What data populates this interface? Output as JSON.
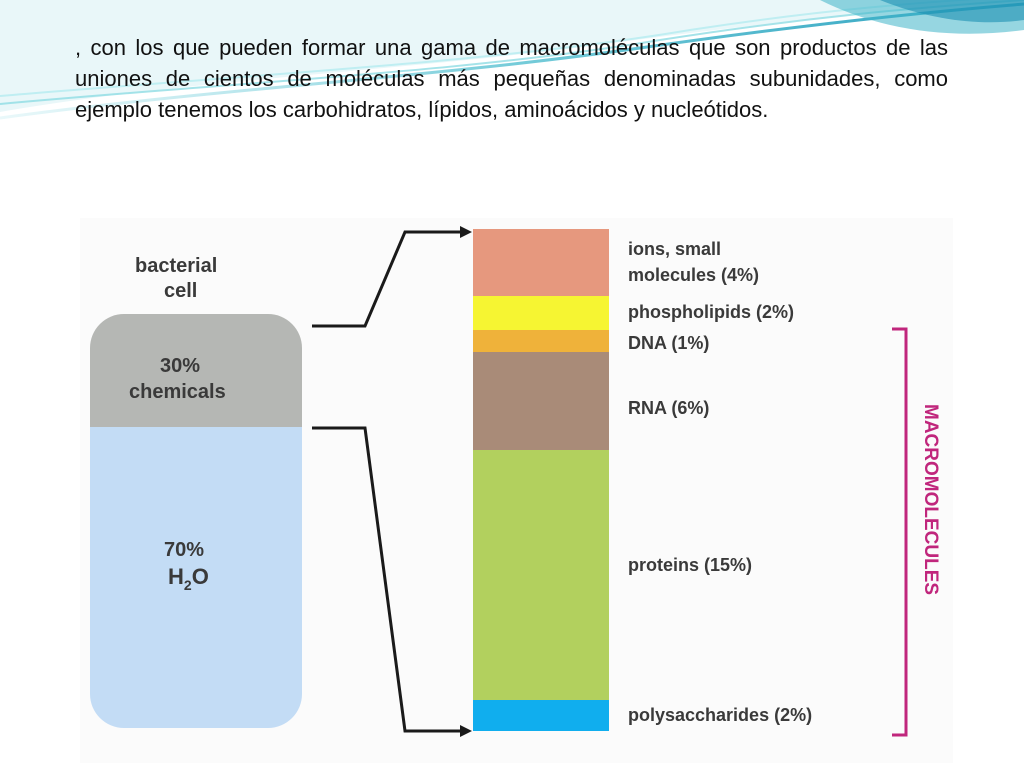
{
  "slide": {
    "text": ", con los que pueden formar una gama de macromoléculas que son productos de las uniones de cientos de moléculas más pequeñas denominadas subunidades, como ejemplo tenemos los carbohidratos, lípidos, aminoácidos y nucleótidos."
  },
  "figure": {
    "cell_label_line1": "bacterial",
    "cell_label_line2": "cell",
    "chemicals_pct": "30%",
    "chemicals_label": "chemicals",
    "water_pct": "70%",
    "water_label_h": "H",
    "water_label_sub": "2",
    "water_label_o": "O",
    "bracket_label": "MACROMOLECULES",
    "colors": {
      "chemicals_fill": "#b5b7b4",
      "water_fill": "#c3dcf5",
      "bracket": "#c0267c"
    },
    "components": [
      {
        "label_line1": "ions, small",
        "label_line2": "molecules (4%)",
        "color": "#e6987e"
      },
      {
        "label_line1": "phospholipids (2%)",
        "label_line2": "",
        "color": "#f6f532"
      },
      {
        "label_line1": "DNA (1%)",
        "label_line2": "",
        "color": "#efb23a"
      },
      {
        "label_line1": "RNA (6%)",
        "label_line2": "",
        "color": "#a98b78"
      },
      {
        "label_line1": "proteins (15%)",
        "label_line2": "",
        "color": "#b2d05e"
      },
      {
        "label_line1": "polysaccharides (2%)",
        "label_line2": "",
        "color": "#10aeee"
      }
    ]
  }
}
